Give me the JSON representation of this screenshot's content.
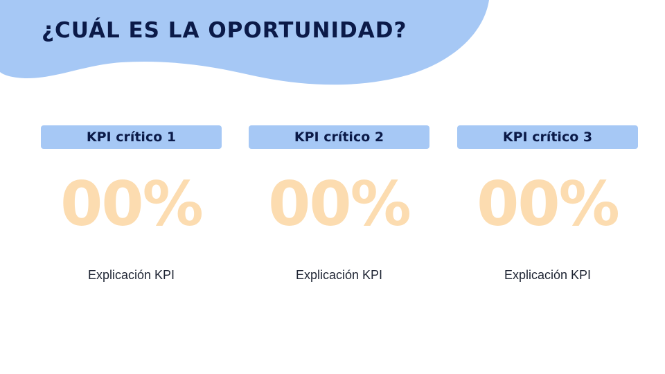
{
  "slide": {
    "title": "¿CUÁL ES LA OPORTUNIDAD?",
    "colors": {
      "title": "#0b1a48",
      "blob": "#a6c8f5",
      "header_bg": "#a6c8f5",
      "value": "#fcdcb0",
      "description": "#1e2433"
    }
  },
  "kpis": [
    {
      "label": "KPI crítico 1",
      "value": "00%",
      "description": "Explicación KPI"
    },
    {
      "label": "KPI crítico 2",
      "value": "00%",
      "description": "Explicación KPI"
    },
    {
      "label": "KPI crítico 3",
      "value": "00%",
      "description": "Explicación KPI"
    }
  ]
}
